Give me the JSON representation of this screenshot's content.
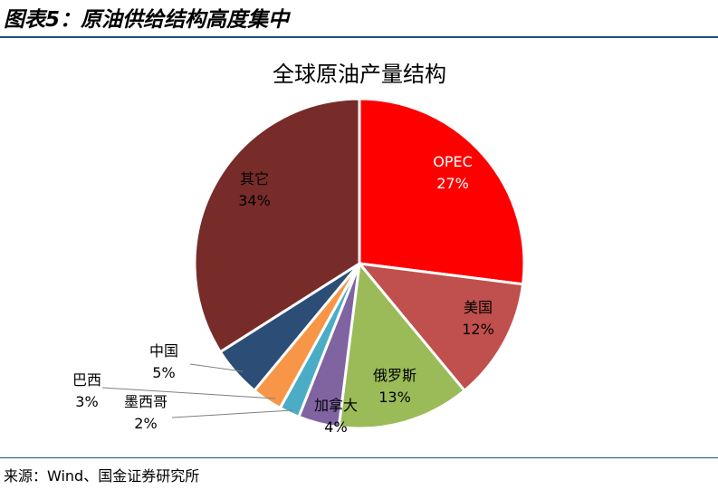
{
  "figure": {
    "heading": "图表5：原油供给结构高度集中",
    "source": "来源：Wind、国金证券研究所"
  },
  "chart_data": {
    "type": "pie",
    "title": "全球原油产量结构",
    "unit": "%",
    "start_angle_deg": 0,
    "direction": "clockwise",
    "slices": [
      {
        "label": "OPEC",
        "value": 27,
        "value_label": "27%",
        "color": "#ff0000",
        "label_color": "#ffffff"
      },
      {
        "label": "美国",
        "value": 12,
        "value_label": "12%",
        "color": "#c0504d",
        "label_color": "#000000"
      },
      {
        "label": "俄罗斯",
        "value": 13,
        "value_label": "13%",
        "color": "#9bbb59",
        "label_color": "#000000"
      },
      {
        "label": "加拿大",
        "value": 4,
        "value_label": "4%",
        "color": "#8064a2",
        "label_color": "#000000"
      },
      {
        "label": "墨西哥",
        "value": 2,
        "value_label": "2%",
        "color": "#4bacc6",
        "label_color": "#000000"
      },
      {
        "label": "巴西",
        "value": 3,
        "value_label": "3%",
        "color": "#f79646",
        "label_color": "#000000"
      },
      {
        "label": "中国",
        "value": 5,
        "value_label": "5%",
        "color": "#2c4d75",
        "label_color": "#000000"
      },
      {
        "label": "其它",
        "value": 34,
        "value_label": "34%",
        "color": "#772c2a",
        "label_color": "#000000"
      }
    ]
  }
}
